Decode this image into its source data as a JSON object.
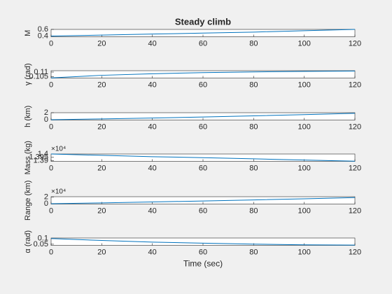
{
  "chart_data": [
    {
      "type": "line",
      "title": "Steady climb",
      "ylabel": "M",
      "x": [
        0,
        20,
        40,
        60,
        80,
        100,
        120
      ],
      "values": [
        0.4,
        0.43,
        0.46,
        0.49,
        0.52,
        0.56,
        0.6
      ],
      "color": "#0072bd",
      "xlim": [
        0,
        120
      ],
      "xticks": [
        0,
        20,
        40,
        60,
        80,
        100,
        120
      ],
      "ylim": [
        0.38,
        0.6
      ],
      "yticks": [
        0.4,
        0.6
      ]
    },
    {
      "type": "line",
      "ylabel": "γ (rad)",
      "x": [
        0,
        20,
        40,
        60,
        80,
        100,
        120
      ],
      "values": [
        0.1037,
        0.1065,
        0.1082,
        0.1094,
        0.1102,
        0.1107,
        0.1111
      ],
      "color": "#0072bd",
      "xlim": [
        0,
        120
      ],
      "xticks": [
        0,
        20,
        40,
        60,
        80,
        100,
        120
      ],
      "ylim": [
        0.1035,
        0.1115
      ],
      "yticks": [
        0.105,
        0.11
      ]
    },
    {
      "type": "line",
      "ylabel": "h (km)",
      "x": [
        0,
        20,
        40,
        60,
        80,
        100,
        120
      ],
      "values": [
        0,
        0.22,
        0.48,
        0.78,
        1.1,
        1.45,
        1.82
      ],
      "color": "#0072bd",
      "xlim": [
        0,
        120
      ],
      "xticks": [
        0,
        20,
        40,
        60,
        80,
        100,
        120
      ],
      "ylim": [
        -0.1,
        2
      ],
      "yticks": [
        0,
        2
      ]
    },
    {
      "type": "line",
      "ylabel": "Mass (kg)",
      "y_scale_label": "×10⁴",
      "x": [
        0,
        20,
        40,
        60,
        80,
        100,
        120
      ],
      "values": [
        1.4,
        1.398,
        1.396,
        1.3945,
        1.3928,
        1.391,
        1.3893
      ],
      "color": "#0072bd",
      "xlim": [
        0,
        120
      ],
      "xticks": [
        0,
        20,
        40,
        60,
        80,
        100,
        120
      ],
      "ylim": [
        1.389,
        1.4
      ],
      "yticks": [
        1.39,
        1.395,
        1.4
      ]
    },
    {
      "type": "line",
      "ylabel": "Range (km)",
      "y_scale_label": "×10⁴",
      "x": [
        0,
        20,
        40,
        60,
        80,
        100,
        120
      ],
      "values": [
        0,
        0.25,
        0.52,
        0.82,
        1.14,
        1.48,
        1.84
      ],
      "color": "#0072bd",
      "xlim": [
        0,
        120
      ],
      "xticks": [
        0,
        20,
        40,
        60,
        80,
        100,
        120
      ],
      "ylim": [
        -0.1,
        2.1
      ],
      "yticks": [
        0,
        2
      ]
    },
    {
      "type": "line",
      "ylabel": "α (rad)",
      "xlabel": "Time (sec)",
      "x": [
        0,
        20,
        40,
        60,
        80,
        100,
        120
      ],
      "values": [
        0.1,
        0.083,
        0.069,
        0.059,
        0.051,
        0.045,
        0.042
      ],
      "color": "#0072bd",
      "xlim": [
        0,
        120
      ],
      "xticks": [
        0,
        20,
        40,
        60,
        80,
        100,
        120
      ],
      "ylim": [
        0.04,
        0.105
      ],
      "yticks": [
        0.05,
        0.1
      ]
    }
  ]
}
